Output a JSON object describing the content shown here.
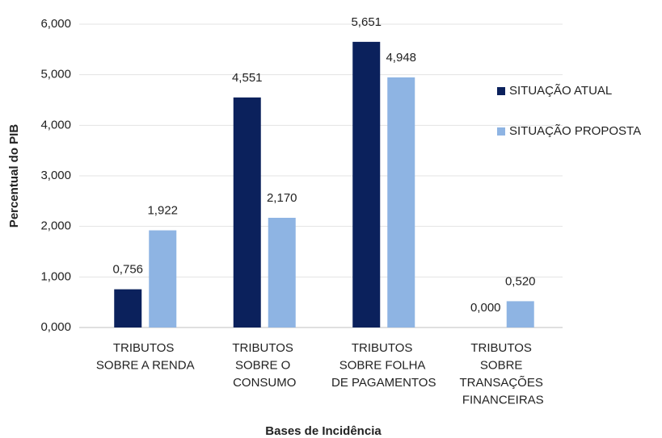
{
  "chart_data": {
    "type": "bar",
    "x_label": "Bases de Incidência",
    "y_label": "Percentual do PIB",
    "categories": [
      "TRIBUTOS SOBRE A RENDA",
      "TRIBUTOS SOBRE O CONSUMO",
      "TRIBUTOS SOBRE FOLHA DE PAGAMENTOS",
      "TRIBUTOS SOBRE TRANSAÇÕES FINANCEIRAS"
    ],
    "series": [
      {
        "name": "SITUAÇÃO ATUAL",
        "color": "#0b215c",
        "values": [
          0.756,
          4.551,
          5.651,
          0
        ],
        "value_labels": [
          "0,756",
          "4,551",
          "5,651",
          "0,000"
        ]
      },
      {
        "name": "SITUAÇÃO PROPOSTA",
        "color": "#8eb4e3",
        "values": [
          1.922,
          2.17,
          4.948,
          0.52
        ],
        "value_labels": [
          "1,922",
          "2,170",
          "4,948",
          "0,520"
        ]
      }
    ],
    "ylim": [
      0,
      6
    ],
    "yticks": [
      {
        "value": 0,
        "label": "0,000"
      },
      {
        "value": 1,
        "label": "1,000"
      },
      {
        "value": 2,
        "label": "2,000"
      },
      {
        "value": 3,
        "label": "3,000"
      },
      {
        "value": 4,
        "label": "4,000"
      },
      {
        "value": 5,
        "label": "5,000"
      },
      {
        "value": 6,
        "label": "6,000"
      }
    ],
    "grid": true,
    "legend": "right"
  }
}
